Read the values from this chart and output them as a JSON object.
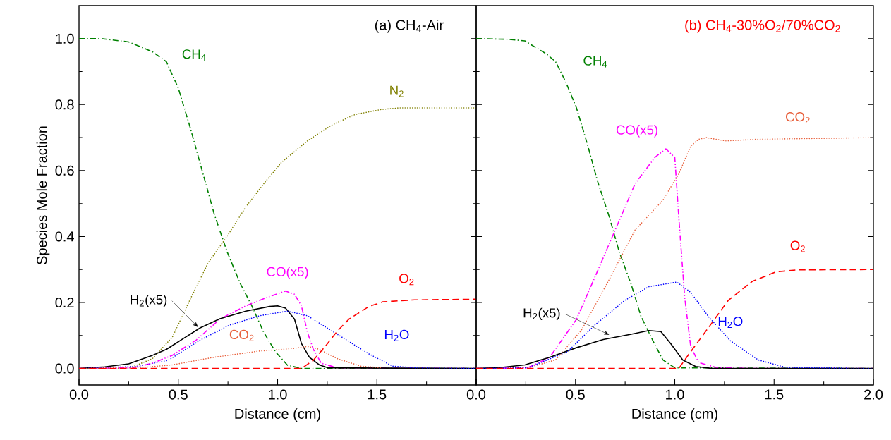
{
  "chart_data": [
    {
      "type": "line",
      "title": "(a) CH$_{4}$-Air",
      "xlabel": "Distance (cm)",
      "ylabel": "Species Mole Fraction",
      "xlim": [
        0,
        2
      ],
      "ylim": [
        -0.05,
        1.1
      ],
      "xticks": [
        {
          "value": 0,
          "label": "0.0"
        },
        {
          "value": 0.5,
          "label": "0.5"
        },
        {
          "value": 1,
          "label": "1.0"
        },
        {
          "value": 1.5,
          "label": "1.5"
        },
        {
          "value": 2,
          "label": null
        }
      ],
      "yticks": [
        {
          "value": 0,
          "label": "0.0"
        },
        {
          "value": 0.2,
          "label": "0.2"
        },
        {
          "value": 0.4,
          "label": "0.4"
        },
        {
          "value": 0.6,
          "label": "0.6"
        },
        {
          "value": 0.8,
          "label": "0.8"
        },
        {
          "value": 1,
          "label": "1.0"
        }
      ],
      "grid": false,
      "legend": false,
      "marker": "none",
      "series": [
        {
          "name": "CH$_{4}$",
          "color": "#008000",
          "line_style": "dashdot",
          "x": [
            0,
            0.11,
            0.25,
            0.37,
            0.44,
            0.5,
            0.56,
            0.62,
            0.68,
            0.745,
            0.81,
            0.87,
            0.93,
            0.99,
            1.05,
            1.12,
            2
          ],
          "values": [
            1,
            1,
            0.99,
            0.96,
            0.93,
            0.85,
            0.73,
            0.6,
            0.47,
            0.355,
            0.26,
            0.19,
            0.11,
            0.05,
            0.01,
            0,
            0
          ]
        },
        {
          "name": "N$_{2}$",
          "color": "#808000",
          "line_style": "dotted",
          "x": [
            0,
            0.25,
            0.37,
            0.47,
            0.56,
            0.65,
            0.745,
            0.84,
            0.93,
            1.02,
            1.15,
            1.27,
            1.39,
            1.52,
            1.61,
            2
          ],
          "values": [
            0,
            0,
            0.03,
            0.095,
            0.21,
            0.32,
            0.4,
            0.49,
            0.56,
            0.625,
            0.69,
            0.737,
            0.77,
            0.785,
            0.79,
            0.79
          ]
        },
        {
          "name": "CO(x5)",
          "color": "#ff00ff",
          "line_style": "dashdotdot",
          "x": [
            0,
            0.27,
            0.37,
            0.47,
            0.59,
            0.71,
            0.84,
            0.95,
            1.04,
            1.085,
            1.12,
            1.15,
            1.18,
            1.22,
            1.3,
            2
          ],
          "values": [
            0,
            0.002,
            0.016,
            0.04,
            0.086,
            0.15,
            0.19,
            0.216,
            0.235,
            0.225,
            0.19,
            0.11,
            0.058,
            0.016,
            0.002,
            0
          ]
        },
        {
          "name": "H$_{2}$(x5)",
          "color": "#000000",
          "line_style": "solid",
          "x": [
            0,
            0.13,
            0.25,
            0.37,
            0.44,
            0.5,
            0.61,
            0.71,
            0.84,
            0.96,
            1.0,
            1.04,
            1.085,
            1.12,
            1.16,
            1.21,
            1.255,
            2
          ],
          "values": [
            0,
            0.005,
            0.014,
            0.04,
            0.058,
            0.081,
            0.123,
            0.151,
            0.174,
            0.188,
            0.19,
            0.183,
            0.15,
            0.076,
            0.034,
            0.011,
            0.002,
            0
          ]
        },
        {
          "name": "H$_{2}$O",
          "color": "#0000ff",
          "line_style": "dotted",
          "x": [
            0,
            0.3,
            0.45,
            0.61,
            0.76,
            0.91,
            1.05,
            1.15,
            1.3,
            1.46,
            1.58,
            1.69,
            2
          ],
          "values": [
            0,
            0.007,
            0.025,
            0.086,
            0.132,
            0.16,
            0.174,
            0.16,
            0.104,
            0.044,
            0.007,
            0.002,
            0
          ]
        },
        {
          "name": "CO$_{2}$",
          "color": "#e8603c",
          "line_style": "dotted",
          "x": [
            0,
            0.3,
            0.47,
            0.68,
            0.91,
            1.07,
            1.15,
            1.21,
            1.3,
            1.42,
            1.53
          ],
          "values": [
            0,
            0.002,
            0.011,
            0.034,
            0.053,
            0.06,
            0.067,
            0.058,
            0.03,
            0.007,
            0.002
          ]
        },
        {
          "name": "O$_{2}$",
          "color": "#ff0000",
          "line_style": "dashed",
          "x": [
            0,
            1.12,
            1.18,
            1.24,
            1.3,
            1.36,
            1.46,
            1.53,
            1.69,
            2
          ],
          "values": [
            0,
            0,
            0.025,
            0.067,
            0.113,
            0.15,
            0.188,
            0.202,
            0.208,
            0.21
          ]
        }
      ]
    },
    {
      "type": "line",
      "title": "(b) CH$_{4}$-30%O$_{2}$/70%CO$_{2}$",
      "xlabel": "Distance (cm)",
      "xlim": [
        0,
        2
      ],
      "ylim": [
        -0.05,
        1.1
      ],
      "xticks": [
        {
          "value": 0,
          "label": "0.0"
        },
        {
          "value": 0.5,
          "label": "0.5"
        },
        {
          "value": 1,
          "label": "1.0"
        },
        {
          "value": 1.5,
          "label": "1.5"
        },
        {
          "value": 2,
          "label": "2.0"
        }
      ],
      "yticks": [
        {
          "value": 0,
          "label": null
        },
        {
          "value": 0.2,
          "label": null
        },
        {
          "value": 0.4,
          "label": null
        },
        {
          "value": 0.6,
          "label": null
        },
        {
          "value": 0.8,
          "label": null
        },
        {
          "value": 1,
          "label": null
        }
      ],
      "tick_labels": "x",
      "grid": false,
      "legend": false,
      "marker": "none",
      "series": [
        {
          "name": "CH$_{4}$",
          "color": "#008000",
          "line_style": "dashdot",
          "x": [
            0,
            0.16,
            0.245,
            0.355,
            0.4,
            0.45,
            0.505,
            0.56,
            0.61,
            0.67,
            0.72,
            0.78,
            0.83,
            0.89,
            0.94,
            1.0,
            2
          ],
          "values": [
            1,
            0.998,
            0.993,
            0.953,
            0.93,
            0.87,
            0.79,
            0.68,
            0.57,
            0.46,
            0.354,
            0.256,
            0.158,
            0.084,
            0.026,
            0.002,
            0
          ]
        },
        {
          "name": "CO$_{2}$",
          "color": "#e8603c",
          "line_style": "dotted",
          "x": [
            0,
            0.26,
            0.4,
            0.53,
            0.67,
            0.8,
            0.94,
            1.02,
            1.08,
            1.12,
            1.16,
            1.255,
            1.42,
            2
          ],
          "values": [
            0,
            0.002,
            0.026,
            0.116,
            0.27,
            0.42,
            0.51,
            0.59,
            0.674,
            0.695,
            0.7,
            0.69,
            0.695,
            0.7
          ]
        },
        {
          "name": "CO(x5)",
          "color": "#ff00ff",
          "line_style": "dashdotdot",
          "x": [
            0,
            0.26,
            0.37,
            0.505,
            0.6,
            0.7,
            0.8,
            0.9,
            0.955,
            1.0,
            1.02,
            1.05,
            1.08,
            1.12,
            1.21,
            1.4,
            2
          ],
          "values": [
            0,
            0.002,
            0.034,
            0.149,
            0.28,
            0.42,
            0.56,
            0.64,
            0.666,
            0.64,
            0.46,
            0.215,
            0.067,
            0.018,
            0.003,
            0,
            0
          ]
        },
        {
          "name": "H$_{2}$(x5)",
          "color": "#000000",
          "line_style": "solid",
          "x": [
            0,
            0.12,
            0.245,
            0.37,
            0.505,
            0.64,
            0.78,
            0.87,
            0.93,
            0.98,
            1.04,
            1.105,
            1.19,
            2
          ],
          "values": [
            0,
            0.003,
            0.011,
            0.034,
            0.063,
            0.088,
            0.104,
            0.115,
            0.112,
            0.075,
            0.026,
            0.006,
            0,
            0
          ]
        },
        {
          "name": "H$_{2}$O",
          "color": "#0000ff",
          "line_style": "dotted",
          "x": [
            0,
            0.26,
            0.46,
            0.6,
            0.75,
            0.87,
            1.01,
            1.08,
            1.17,
            1.28,
            1.42,
            1.56,
            2
          ],
          "values": [
            0,
            0.002,
            0.051,
            0.133,
            0.207,
            0.248,
            0.262,
            0.231,
            0.157,
            0.084,
            0.026,
            0.003,
            0
          ]
        },
        {
          "name": "O$_{2}$",
          "color": "#ff0000",
          "line_style": "dashed",
          "x": [
            0,
            1.02,
            1.08,
            1.16,
            1.27,
            1.39,
            1.51,
            1.62,
            2
          ],
          "values": [
            0,
            0,
            0.051,
            0.116,
            0.207,
            0.264,
            0.293,
            0.299,
            0.3
          ]
        }
      ]
    }
  ]
}
